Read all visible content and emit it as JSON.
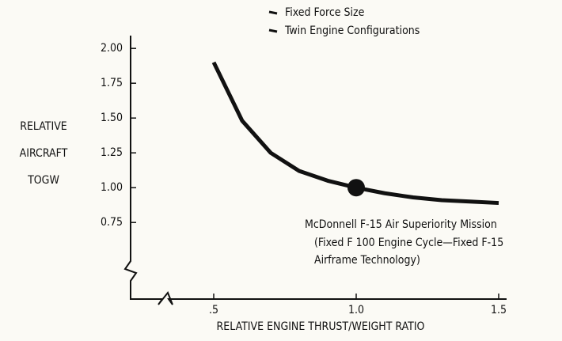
{
  "chart_data": {
    "type": "line",
    "notes": [
      "Fixed Force Size",
      "Twin Engine Configurations"
    ],
    "y_label": [
      "RELATIVE",
      "AIRCRAFT",
      "TOGW"
    ],
    "x_label": "RELATIVE ENGINE THRUST/WEIGHT RATIO",
    "x": [
      0.5,
      0.6,
      0.7,
      0.8,
      0.9,
      1.0,
      1.1,
      1.2,
      1.3,
      1.4,
      1.5
    ],
    "series": [
      {
        "color": "#111111",
        "values": [
          1.9,
          1.48,
          1.25,
          1.12,
          1.05,
          1.0,
          0.96,
          0.93,
          0.91,
          0.9,
          0.89
        ]
      }
    ],
    "marker": {
      "x": 1.0,
      "y": 1.0
    },
    "annotation": [
      "McDonnell F-15 Air Superiority Mission",
      "(Fixed F 100 Engine Cycle—Fixed F-15",
      "Airframe Technology)"
    ],
    "xlim": [
      0.2,
      1.5
    ],
    "ylim": [
      0.2,
      2.1
    ],
    "xticks": [
      {
        "value": 0.5,
        "label": ".5"
      },
      {
        "value": 1.0,
        "label": "1.0"
      },
      {
        "value": 1.5,
        "label": "1.5"
      }
    ],
    "yticks": [
      {
        "value": 2.0,
        "label": "2.00"
      },
      {
        "value": 1.75,
        "label": "1.75"
      },
      {
        "value": 1.5,
        "label": "1.50"
      },
      {
        "value": 1.25,
        "label": "1.25"
      },
      {
        "value": 1.0,
        "label": "1.00"
      },
      {
        "value": 0.75,
        "label": "0.75"
      }
    ]
  }
}
